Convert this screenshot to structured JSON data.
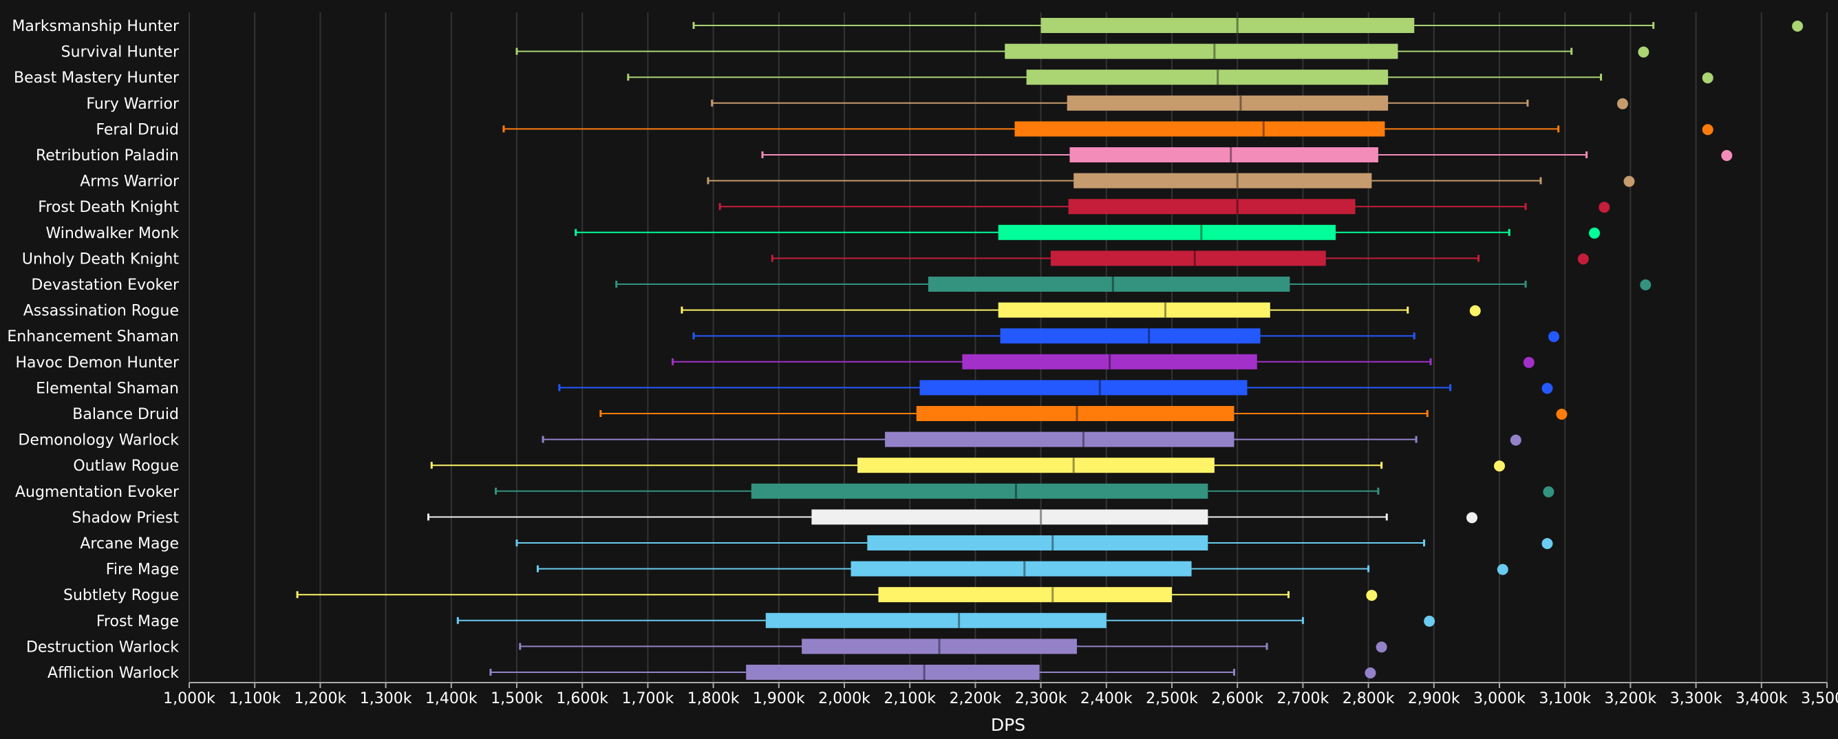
{
  "chart_data": {
    "type": "boxplot",
    "title": "",
    "xlabel": "DPS",
    "ylabel": "",
    "xlim": [
      1000,
      3500
    ],
    "x_unit": "k",
    "x_ticks": [
      "1,000k",
      "1,100k",
      "1,200k",
      "1,300k",
      "1,400k",
      "1,500k",
      "1,600k",
      "1,700k",
      "1,800k",
      "1,900k",
      "2,000k",
      "2,100k",
      "2,200k",
      "2,300k",
      "2,400k",
      "2,500k",
      "2,600k",
      "2,700k",
      "2,800k",
      "2,900k",
      "3,000k",
      "3,100k",
      "3,200k",
      "3,300k",
      "3,400k",
      "3,500k"
    ],
    "grid": true,
    "legend": "none",
    "series": [
      {
        "name": "Marksmanship Hunter",
        "color": "#abd473",
        "min": 1770,
        "q1": 2300,
        "median": 2600,
        "q3": 2870,
        "max": 3235,
        "outlier": 3455
      },
      {
        "name": "Survival Hunter",
        "color": "#abd473",
        "min": 1500,
        "q1": 2245,
        "median": 2565,
        "q3": 2845,
        "max": 3110,
        "outlier": 3220
      },
      {
        "name": "Beast Mastery Hunter",
        "color": "#abd473",
        "min": 1670,
        "q1": 2278,
        "median": 2570,
        "q3": 2830,
        "max": 3155,
        "outlier": 3318
      },
      {
        "name": "Fury Warrior",
        "color": "#c69b6d",
        "min": 1798,
        "q1": 2340,
        "median": 2605,
        "q3": 2830,
        "max": 3043,
        "outlier": 3188
      },
      {
        "name": "Feral Druid",
        "color": "#ff7c0a",
        "min": 1480,
        "q1": 2260,
        "median": 2640,
        "q3": 2825,
        "max": 3090,
        "outlier": 3318
      },
      {
        "name": "Retribution Paladin",
        "color": "#f48cba",
        "min": 1875,
        "q1": 2344,
        "median": 2590,
        "q3": 2815,
        "max": 3133,
        "outlier": 3347
      },
      {
        "name": "Arms Warrior",
        "color": "#c69b6d",
        "min": 1792,
        "q1": 2350,
        "median": 2600,
        "q3": 2805,
        "max": 3063,
        "outlier": 3198
      },
      {
        "name": "Frost Death Knight",
        "color": "#c41e3a",
        "min": 1810,
        "q1": 2342,
        "median": 2600,
        "q3": 2780,
        "max": 3040,
        "outlier": 3160
      },
      {
        "name": "Windwalker Monk",
        "color": "#00ff98",
        "min": 1590,
        "q1": 2235,
        "median": 2545,
        "q3": 2750,
        "max": 3015,
        "outlier": 3145
      },
      {
        "name": "Unholy Death Knight",
        "color": "#c41e3a",
        "min": 1890,
        "q1": 2315,
        "median": 2535,
        "q3": 2735,
        "max": 2968,
        "outlier": 3128
      },
      {
        "name": "Devastation Evoker",
        "color": "#33937f",
        "min": 1652,
        "q1": 2128,
        "median": 2410,
        "q3": 2680,
        "max": 3040,
        "outlier": 3223
      },
      {
        "name": "Assassination Rogue",
        "color": "#fff468",
        "min": 1752,
        "q1": 2235,
        "median": 2490,
        "q3": 2650,
        "max": 2860,
        "outlier": 2963
      },
      {
        "name": "Enhancement Shaman",
        "color": "#2459ff",
        "min": 1770,
        "q1": 2238,
        "median": 2465,
        "q3": 2635,
        "max": 2870,
        "outlier": 3083
      },
      {
        "name": "Havoc Demon Hunter",
        "color": "#a330c9",
        "min": 1738,
        "q1": 2180,
        "median": 2405,
        "q3": 2630,
        "max": 2895,
        "outlier": 3045
      },
      {
        "name": "Elemental Shaman",
        "color": "#2459ff",
        "min": 1565,
        "q1": 2115,
        "median": 2390,
        "q3": 2615,
        "max": 2925,
        "outlier": 3073
      },
      {
        "name": "Balance Druid",
        "color": "#ff7c0a",
        "min": 1628,
        "q1": 2110,
        "median": 2355,
        "q3": 2595,
        "max": 2890,
        "outlier": 3095
      },
      {
        "name": "Demonology Warlock",
        "color": "#9482c9",
        "min": 1540,
        "q1": 2062,
        "median": 2365,
        "q3": 2595,
        "max": 2873,
        "outlier": 3025
      },
      {
        "name": "Outlaw Rogue",
        "color": "#fff468",
        "min": 1370,
        "q1": 2020,
        "median": 2350,
        "q3": 2565,
        "max": 2820,
        "outlier": 3000
      },
      {
        "name": "Augmentation Evoker",
        "color": "#33937f",
        "min": 1468,
        "q1": 1858,
        "median": 2262,
        "q3": 2555,
        "max": 2815,
        "outlier": 3075
      },
      {
        "name": "Shadow Priest",
        "color": "#f0f0f0",
        "min": 1365,
        "q1": 1950,
        "median": 2300,
        "q3": 2555,
        "max": 2828,
        "outlier": 2958
      },
      {
        "name": "Arcane Mage",
        "color": "#69ccf0",
        "min": 1500,
        "q1": 2035,
        "median": 2318,
        "q3": 2555,
        "max": 2885,
        "outlier": 3073
      },
      {
        "name": "Fire Mage",
        "color": "#69ccf0",
        "min": 1532,
        "q1": 2010,
        "median": 2275,
        "q3": 2530,
        "max": 2800,
        "outlier": 3005
      },
      {
        "name": "Subtlety Rogue",
        "color": "#fff468",
        "min": 1165,
        "q1": 2052,
        "median": 2318,
        "q3": 2500,
        "max": 2678,
        "outlier": 2805
      },
      {
        "name": "Frost Mage",
        "color": "#69ccf0",
        "min": 1410,
        "q1": 1880,
        "median": 2175,
        "q3": 2400,
        "max": 2700,
        "outlier": 2893
      },
      {
        "name": "Destruction Warlock",
        "color": "#9482c9",
        "min": 1505,
        "q1": 1935,
        "median": 2145,
        "q3": 2355,
        "max": 2645,
        "outlier": 2820
      },
      {
        "name": "Affliction Warlock",
        "color": "#9482c9",
        "min": 1460,
        "q1": 1850,
        "median": 2122,
        "q3": 2298,
        "max": 2595,
        "outlier": 2803
      }
    ]
  }
}
